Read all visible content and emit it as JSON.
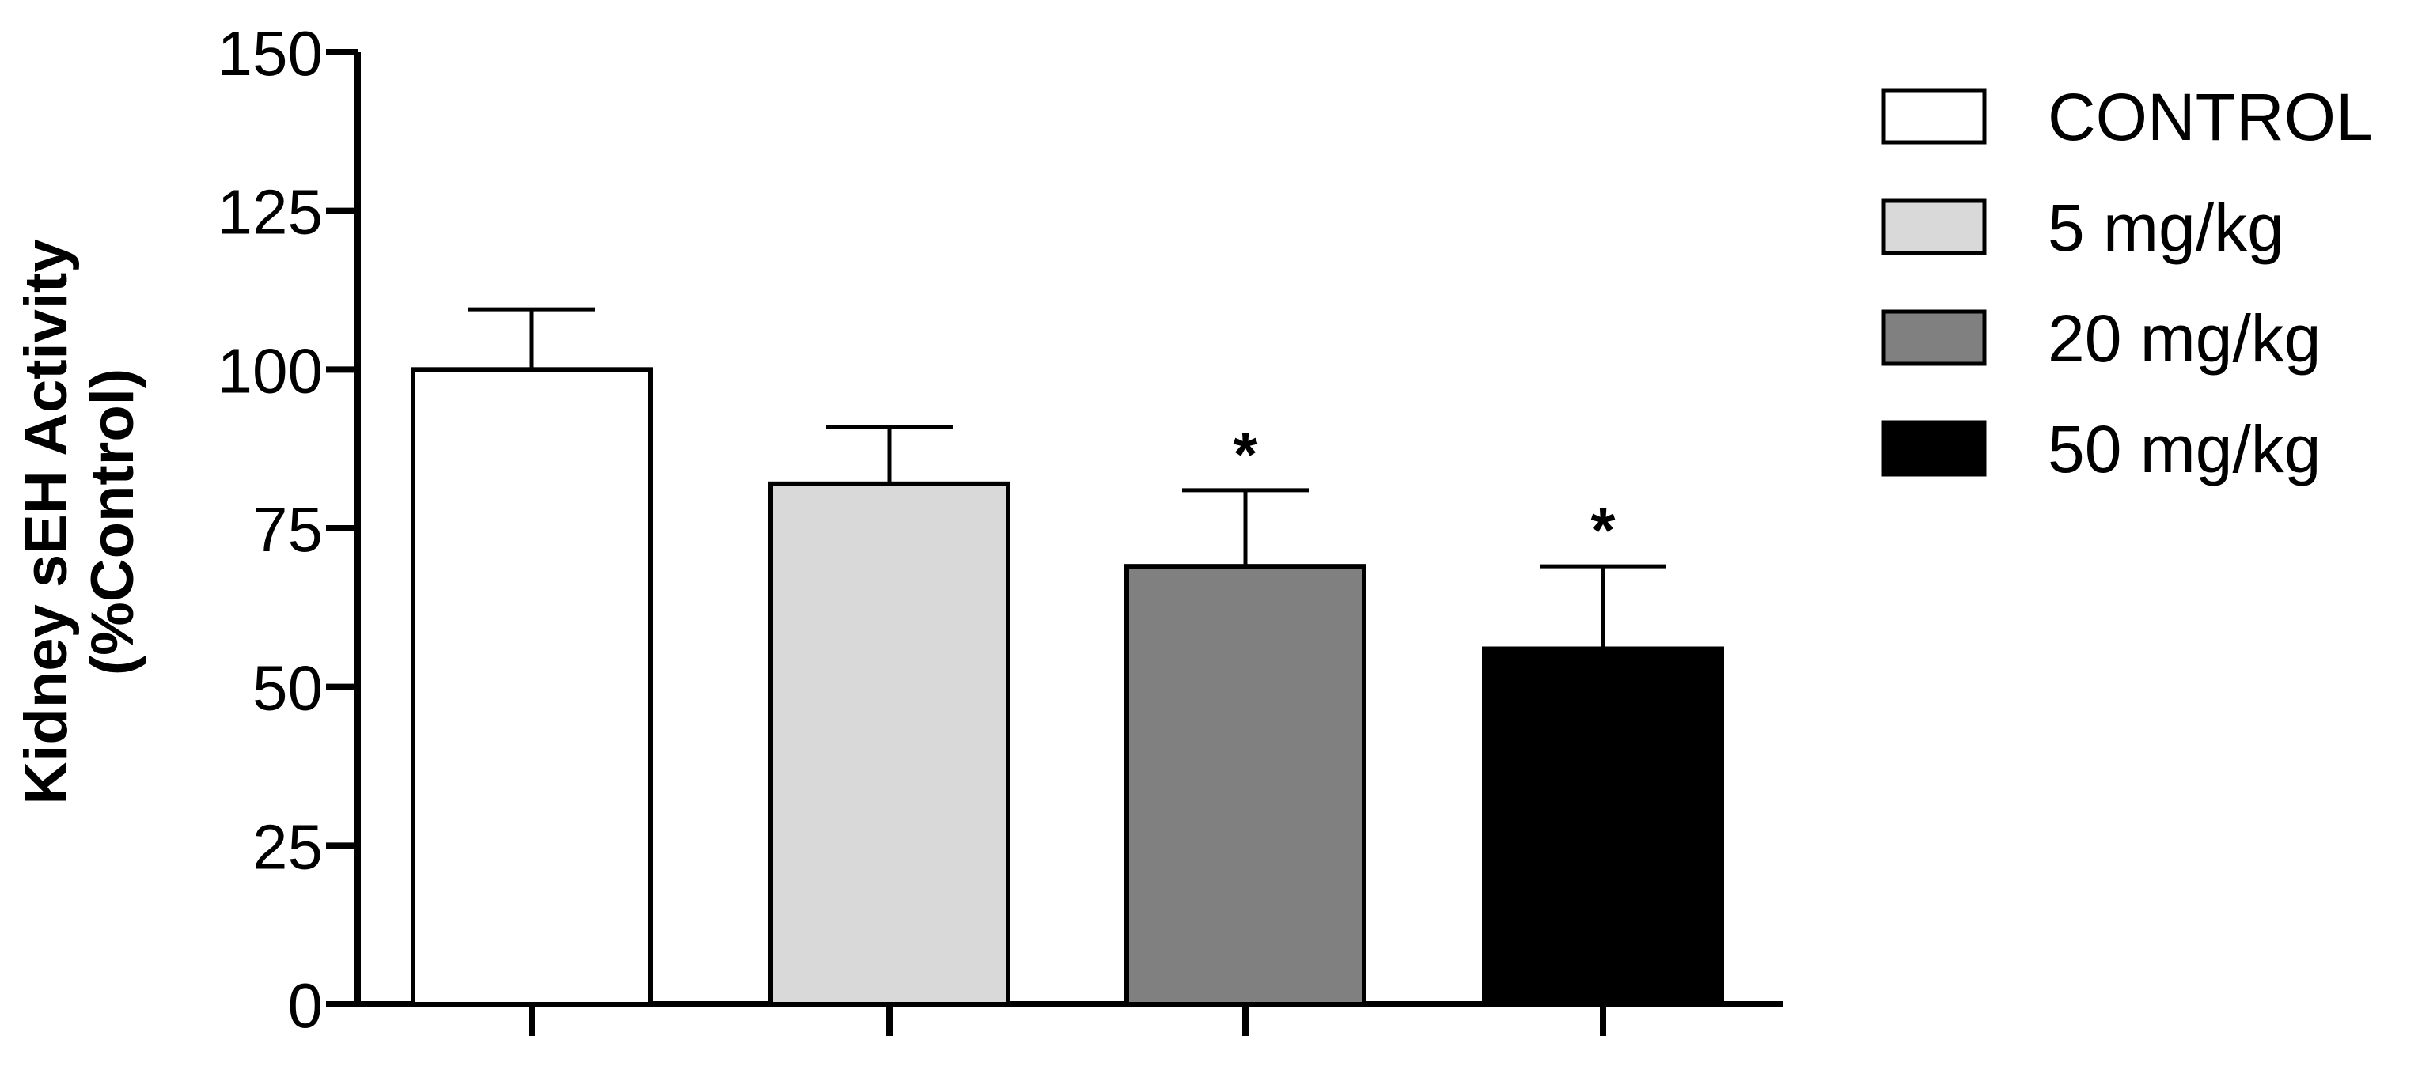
{
  "chart_data": {
    "type": "bar",
    "categories": [
      "CONTROL",
      "5 mg/kg",
      "20 mg/kg",
      "50 mg/kg"
    ],
    "values": [
      100,
      82,
      69,
      56
    ],
    "error_upper": [
      109.5,
      91,
      81,
      69
    ],
    "annotations": [
      "",
      "",
      "*",
      "*"
    ],
    "colors": [
      "#ffffff",
      "#d9d9d9",
      "#808080",
      "#000000"
    ],
    "ylabel_lines": [
      "Kidney sEH Activity",
      "(%Control)"
    ],
    "ylim": [
      0,
      150
    ],
    "yticks": [
      "0",
      "25",
      "50",
      "75",
      "100",
      "125",
      "150"
    ],
    "ytick_values": [
      0,
      25,
      50,
      75,
      100,
      125,
      150
    ],
    "legend": {
      "position": "top-right",
      "entries": [
        "CONTROL",
        "5 mg/kg",
        "20 mg/kg",
        "50 mg/kg"
      ]
    },
    "grid": false
  }
}
